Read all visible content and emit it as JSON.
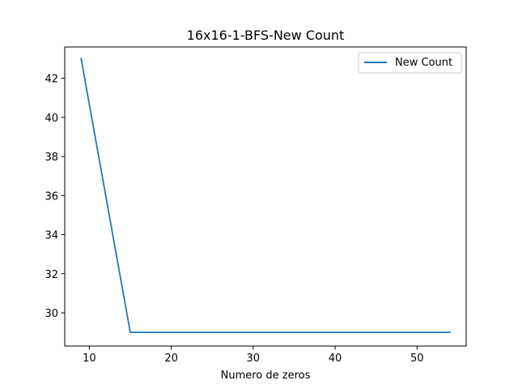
{
  "chart_data": {
    "type": "line",
    "title": "16x16-1-BFS-New Count",
    "xlabel": "Numero de zeros",
    "ylabel": "",
    "xlim": [
      7,
      56
    ],
    "ylim": [
      28.3,
      43.6
    ],
    "xticks": [
      10,
      20,
      30,
      40,
      50
    ],
    "yticks": [
      30,
      32,
      34,
      36,
      38,
      40,
      42
    ],
    "grid": false,
    "legend_position": "top-right",
    "series": [
      {
        "name": "New Count",
        "color": "#1f77b4",
        "x": [
          9,
          15,
          54
        ],
        "y": [
          43,
          29,
          29
        ]
      }
    ]
  }
}
